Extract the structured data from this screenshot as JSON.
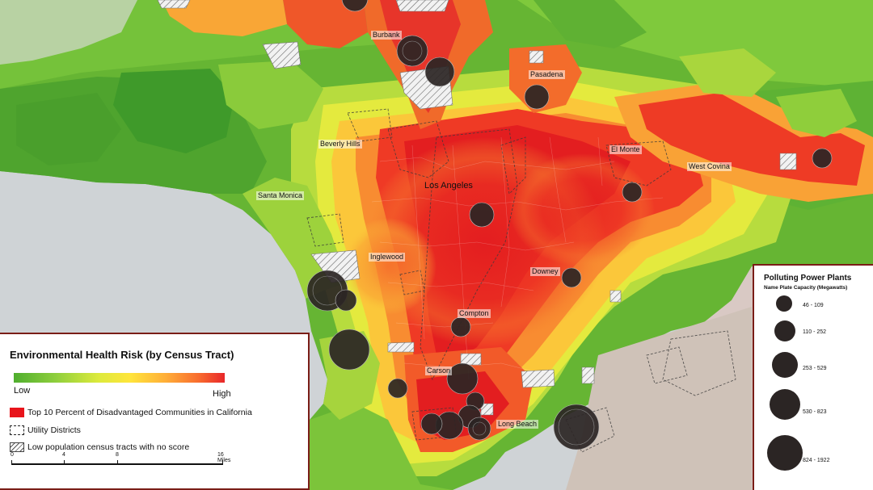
{
  "map": {
    "cities": [
      {
        "name": "Burbank"
      },
      {
        "name": "Pasadena"
      },
      {
        "name": "Beverly Hills"
      },
      {
        "name": "El Monte"
      },
      {
        "name": "West Covina"
      },
      {
        "name": "Santa Monica"
      },
      {
        "name": "Los Angeles"
      },
      {
        "name": "Inglewood"
      },
      {
        "name": "Downey"
      },
      {
        "name": "Compton"
      },
      {
        "name": "Carson"
      },
      {
        "name": "Long Beach"
      }
    ],
    "colors": {
      "water": "#cfd3d6",
      "low": "#4fae2e",
      "high": "#e8272a",
      "disadvantaged": "#e8141b",
      "plant": "#2b2524"
    }
  },
  "legend_left": {
    "title": "Environmental Health Risk (by Census Tract)",
    "low_label": "Low",
    "high_label": "High",
    "items": [
      {
        "icon": "red-square-icon",
        "label": "Top 10 Percent of Disadvantaged Communities in California"
      },
      {
        "icon": "dashed-square-icon",
        "label": "Utility Districts"
      },
      {
        "icon": "hatched-square-icon",
        "label": "Low population census tracts with no score"
      }
    ],
    "scale": {
      "ticks": [
        "0",
        "4",
        "8",
        "16 Miles"
      ]
    }
  },
  "legend_right": {
    "title": "Polluting Power Plants",
    "subtitle": "Name Plate Capacity (Megawatts)",
    "classes": [
      {
        "label": "46 - 109"
      },
      {
        "label": "110 - 252"
      },
      {
        "label": "253 - 529"
      },
      {
        "label": "530 - 823"
      },
      {
        "label": "824 - 1922"
      }
    ]
  }
}
